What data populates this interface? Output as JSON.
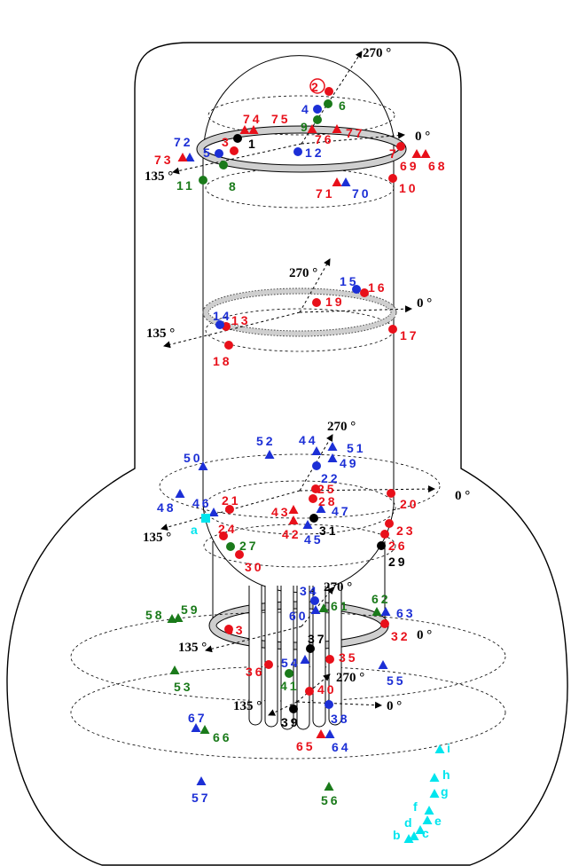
{
  "colors": {
    "red": "#e8101a",
    "blue": "#1c2fd6",
    "green": "#1a7a1a",
    "black": "#000000",
    "cyan": "#00e5ee",
    "ring_gray": "#cfcfcf"
  },
  "axis_labels": {
    "zero": "0 °",
    "deg135": "135 °",
    "deg270": "270 °"
  },
  "points": [
    {
      "id": "p1",
      "label": "1",
      "shape": "circle",
      "color": "black"
    },
    {
      "id": "p2",
      "label": "2",
      "shape": "circle",
      "color": "red"
    },
    {
      "id": "p3",
      "label": "3",
      "shape": "circle",
      "color": "red"
    },
    {
      "id": "p4",
      "label": "4",
      "shape": "circle",
      "color": "blue"
    },
    {
      "id": "p5",
      "label": "5",
      "shape": "circle",
      "color": "blue"
    },
    {
      "id": "p6",
      "label": "6",
      "shape": "circle",
      "color": "green"
    },
    {
      "id": "p7",
      "label": "7",
      "shape": "circle",
      "color": "red"
    },
    {
      "id": "p8",
      "label": "8",
      "shape": "circle",
      "color": "green"
    },
    {
      "id": "p9",
      "label": "9",
      "shape": "circle",
      "color": "green"
    },
    {
      "id": "p10",
      "label": "10",
      "shape": "circle",
      "color": "red"
    },
    {
      "id": "p11",
      "label": "11",
      "shape": "circle",
      "color": "green"
    },
    {
      "id": "p12",
      "label": "12",
      "shape": "circle",
      "color": "blue"
    },
    {
      "id": "p13",
      "label": "13",
      "shape": "circle",
      "color": "red"
    },
    {
      "id": "p14",
      "label": "14",
      "shape": "circle",
      "color": "blue"
    },
    {
      "id": "p15",
      "label": "15",
      "shape": "circle",
      "color": "blue"
    },
    {
      "id": "p16",
      "label": "16",
      "shape": "circle",
      "color": "red"
    },
    {
      "id": "p17",
      "label": "17",
      "shape": "circle",
      "color": "red"
    },
    {
      "id": "p18",
      "label": "18",
      "shape": "circle",
      "color": "red"
    },
    {
      "id": "p19",
      "label": "19",
      "shape": "circle",
      "color": "red"
    },
    {
      "id": "p20",
      "label": "20",
      "shape": "circle",
      "color": "red"
    },
    {
      "id": "p21",
      "label": "21",
      "shape": "circle",
      "color": "red"
    },
    {
      "id": "p22",
      "label": "22",
      "shape": "circle",
      "color": "blue"
    },
    {
      "id": "p23",
      "label": "23",
      "shape": "circle",
      "color": "red"
    },
    {
      "id": "p24",
      "label": "24",
      "shape": "circle",
      "color": "red"
    },
    {
      "id": "p25",
      "label": "25",
      "shape": "circle",
      "color": "red"
    },
    {
      "id": "p26",
      "label": "26",
      "shape": "circle",
      "color": "red"
    },
    {
      "id": "p27",
      "label": "27",
      "shape": "circle",
      "color": "green"
    },
    {
      "id": "p28",
      "label": "28",
      "shape": "circle",
      "color": "red"
    },
    {
      "id": "p29",
      "label": "29",
      "shape": "circle",
      "color": "black"
    },
    {
      "id": "p30",
      "label": "30",
      "shape": "circle",
      "color": "red"
    },
    {
      "id": "p31",
      "label": "31",
      "shape": "circle",
      "color": "black"
    },
    {
      "id": "p32",
      "label": "32",
      "shape": "circle",
      "color": "red"
    },
    {
      "id": "p33",
      "label": "33",
      "shape": "circle",
      "color": "red"
    },
    {
      "id": "p34",
      "label": "34",
      "shape": "circle",
      "color": "blue"
    },
    {
      "id": "p35",
      "label": "35",
      "shape": "circle",
      "color": "red"
    },
    {
      "id": "p36",
      "label": "36",
      "shape": "circle",
      "color": "red"
    },
    {
      "id": "p37",
      "label": "37",
      "shape": "circle",
      "color": "black"
    },
    {
      "id": "p38",
      "label": "38",
      "shape": "circle",
      "color": "blue"
    },
    {
      "id": "p39",
      "label": "39",
      "shape": "circle",
      "color": "black"
    },
    {
      "id": "p40",
      "label": "40",
      "shape": "circle",
      "color": "red"
    },
    {
      "id": "p41",
      "label": "41",
      "shape": "circle",
      "color": "green"
    },
    {
      "id": "p42",
      "label": "42",
      "shape": "triangle",
      "color": "red"
    },
    {
      "id": "p43",
      "label": "43",
      "shape": "triangle",
      "color": "red"
    },
    {
      "id": "p44",
      "label": "44",
      "shape": "triangle",
      "color": "blue"
    },
    {
      "id": "p45",
      "label": "45",
      "shape": "triangle",
      "color": "blue"
    },
    {
      "id": "p46",
      "label": "46",
      "shape": "triangle",
      "color": "blue"
    },
    {
      "id": "p47",
      "label": "47",
      "shape": "triangle",
      "color": "blue"
    },
    {
      "id": "p48",
      "label": "48",
      "shape": "triangle",
      "color": "blue"
    },
    {
      "id": "p49",
      "label": "49",
      "shape": "triangle",
      "color": "blue"
    },
    {
      "id": "p50",
      "label": "50",
      "shape": "triangle",
      "color": "blue"
    },
    {
      "id": "p51",
      "label": "51",
      "shape": "triangle",
      "color": "blue"
    },
    {
      "id": "p52",
      "label": "52",
      "shape": "triangle",
      "color": "blue"
    },
    {
      "id": "p53",
      "label": "53",
      "shape": "triangle",
      "color": "green"
    },
    {
      "id": "p54",
      "label": "54",
      "shape": "triangle",
      "color": "blue"
    },
    {
      "id": "p55",
      "label": "55",
      "shape": "triangle",
      "color": "blue"
    },
    {
      "id": "p56",
      "label": "56",
      "shape": "triangle",
      "color": "green"
    },
    {
      "id": "p57",
      "label": "57",
      "shape": "triangle",
      "color": "blue"
    },
    {
      "id": "p58",
      "label": "58",
      "shape": "triangle",
      "color": "green"
    },
    {
      "id": "p59",
      "label": "59",
      "shape": "triangle",
      "color": "green"
    },
    {
      "id": "p60",
      "label": "60",
      "shape": "triangle",
      "color": "blue"
    },
    {
      "id": "p61",
      "label": "61",
      "shape": "triangle",
      "color": "green"
    },
    {
      "id": "p62",
      "label": "62",
      "shape": "triangle",
      "color": "green"
    },
    {
      "id": "p63",
      "label": "63",
      "shape": "triangle",
      "color": "blue"
    },
    {
      "id": "p64",
      "label": "64",
      "shape": "triangle",
      "color": "blue"
    },
    {
      "id": "p65",
      "label": "65",
      "shape": "triangle",
      "color": "red"
    },
    {
      "id": "p66",
      "label": "66",
      "shape": "triangle",
      "color": "green"
    },
    {
      "id": "p67",
      "label": "67",
      "shape": "triangle",
      "color": "blue"
    },
    {
      "id": "p68",
      "label": "68",
      "shape": "triangle",
      "color": "red"
    },
    {
      "id": "p69",
      "label": "69",
      "shape": "triangle",
      "color": "red"
    },
    {
      "id": "p70",
      "label": "70",
      "shape": "triangle",
      "color": "blue"
    },
    {
      "id": "p71",
      "label": "71",
      "shape": "triangle",
      "color": "red"
    },
    {
      "id": "p72",
      "label": "72",
      "shape": "triangle",
      "color": "blue"
    },
    {
      "id": "p73",
      "label": "73",
      "shape": "triangle",
      "color": "red"
    },
    {
      "id": "p74",
      "label": "74",
      "shape": "triangle",
      "color": "red"
    },
    {
      "id": "p75",
      "label": "75",
      "shape": "triangle",
      "color": "red"
    },
    {
      "id": "p76",
      "label": "76",
      "shape": "triangle",
      "color": "red"
    },
    {
      "id": "p77",
      "label": "77",
      "shape": "triangle",
      "color": "red"
    },
    {
      "id": "pa",
      "label": "a",
      "shape": "square",
      "color": "cyan"
    },
    {
      "id": "pb",
      "label": "b",
      "shape": "triangle",
      "color": "cyan"
    },
    {
      "id": "pc",
      "label": "c",
      "shape": "triangle",
      "color": "cyan"
    },
    {
      "id": "pd",
      "label": "d",
      "shape": "triangle",
      "color": "cyan"
    },
    {
      "id": "pe",
      "label": "e",
      "shape": "triangle",
      "color": "cyan"
    },
    {
      "id": "pf",
      "label": "f",
      "shape": "triangle",
      "color": "cyan"
    },
    {
      "id": "pg",
      "label": "g",
      "shape": "triangle",
      "color": "cyan"
    },
    {
      "id": "ph",
      "label": "h",
      "shape": "triangle",
      "color": "cyan"
    },
    {
      "id": "pi",
      "label": "i",
      "shape": "triangle",
      "color": "cyan"
    }
  ]
}
